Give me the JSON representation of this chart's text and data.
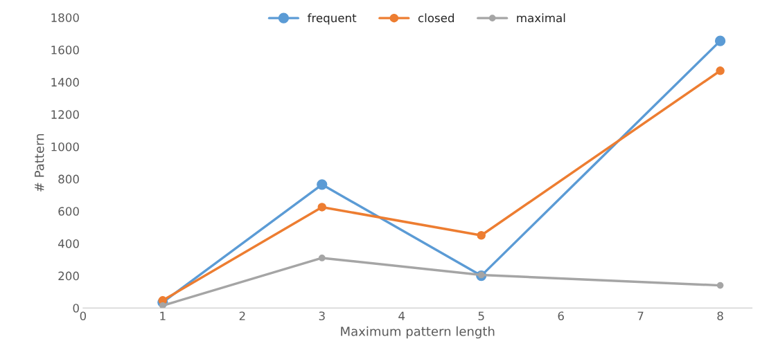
{
  "chart_data": {
    "type": "line",
    "xlabel": "Maximum pattern length",
    "ylabel": "# Pattern",
    "x": [
      1,
      3,
      5,
      8
    ],
    "series": [
      {
        "name": "frequent",
        "color": "#5b9bd5",
        "values": [
          35,
          765,
          200,
          1655
        ]
      },
      {
        "name": "closed",
        "color": "#ed7d31",
        "values": [
          47,
          625,
          450,
          1470
        ]
      },
      {
        "name": "maximal",
        "color": "#a5a5a5",
        "values": [
          15,
          310,
          205,
          140
        ]
      }
    ],
    "xlim": [
      0,
      8.4
    ],
    "xticks": [
      0,
      1,
      2,
      3,
      4,
      5,
      6,
      7,
      8
    ],
    "ylim": [
      0,
      1800
    ],
    "yticks": [
      0,
      200,
      400,
      600,
      800,
      1000,
      1200,
      1400,
      1600,
      1800
    ],
    "grid": false,
    "legend": "top",
    "marker": "circle",
    "line_style": "solid"
  }
}
